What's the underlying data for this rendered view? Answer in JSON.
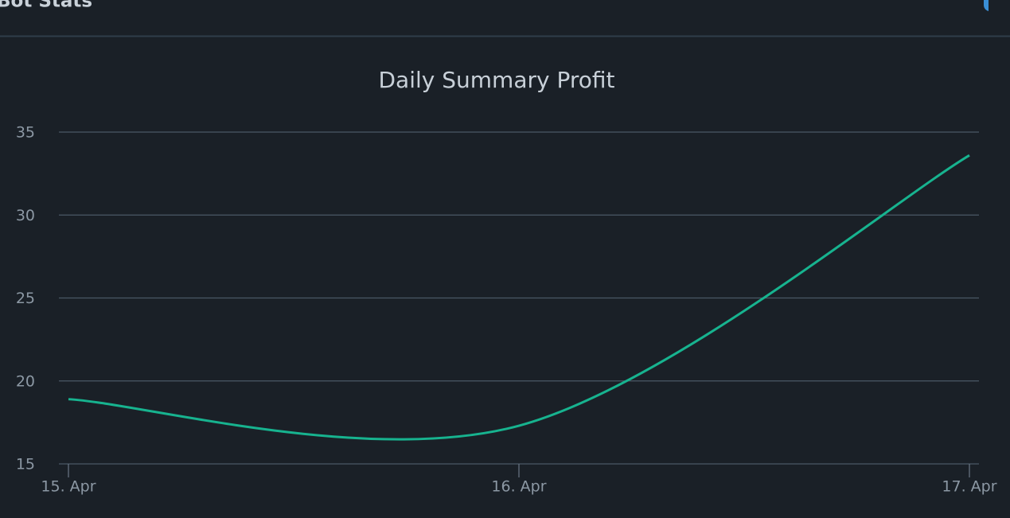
{
  "header": {
    "title": "Bot Stats"
  },
  "chart_data": {
    "type": "line",
    "title": "Daily Summary Profit",
    "categories": [
      "15. Apr",
      "16. Apr",
      "17. Apr"
    ],
    "values": [
      18.9,
      17.3,
      33.6
    ],
    "color": "#17b38f",
    "smooth": true,
    "ylim": [
      15,
      35
    ],
    "yticks": [
      15,
      20,
      25,
      30,
      35
    ],
    "grid": true
  }
}
